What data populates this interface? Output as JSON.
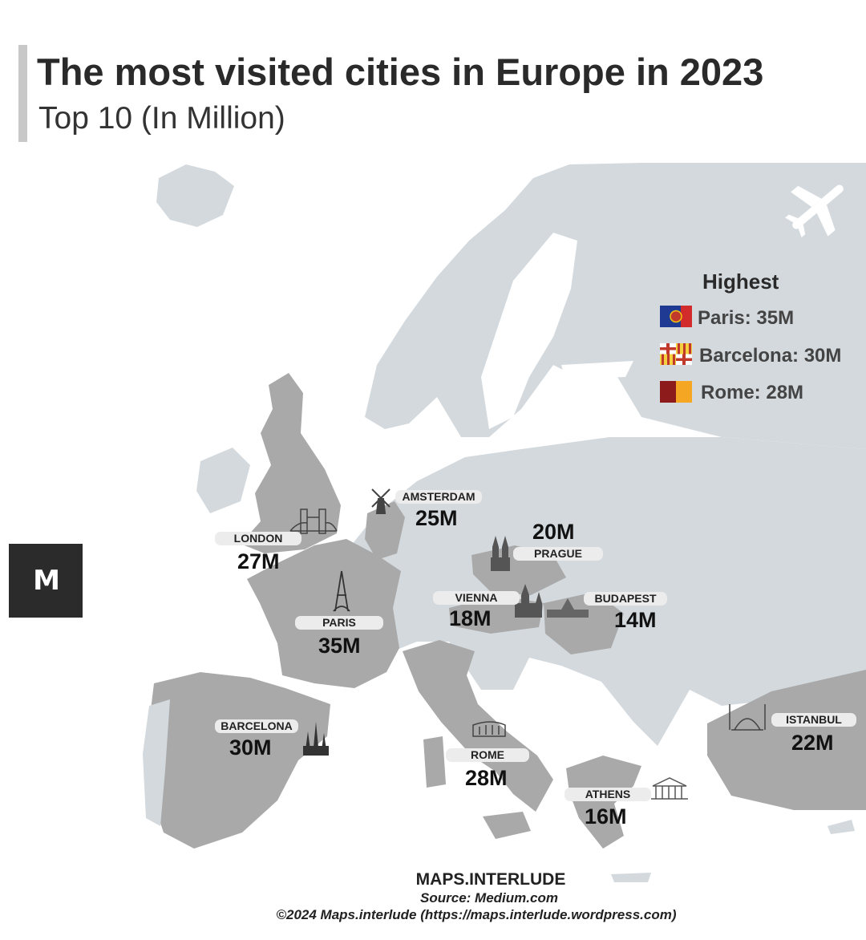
{
  "header": {
    "title": "The most visited cities in Europe in 2023",
    "subtitle": "Top 10 (In Million)"
  },
  "legend": {
    "title": "Highest",
    "items": [
      {
        "label": "Paris: 35M",
        "flag": "paris-flag-icon"
      },
      {
        "label": "Barcelona: 30M",
        "flag": "barcelona-flag-icon"
      },
      {
        "label": "Rome: 28M",
        "flag": "rome-flag-icon"
      }
    ]
  },
  "cities": [
    {
      "name": "LONDON",
      "value": "27M",
      "visitors": 27,
      "landmark": "tower-bridge-icon"
    },
    {
      "name": "AMSTERDAM",
      "value": "25M",
      "visitors": 25,
      "landmark": "windmill-icon"
    },
    {
      "name": "PRAGUE",
      "value": "20M",
      "visitors": 20,
      "landmark": "tyn-church-icon"
    },
    {
      "name": "PARIS",
      "value": "35M",
      "visitors": 35,
      "landmark": "eiffel-tower-icon"
    },
    {
      "name": "VIENNA",
      "value": "18M",
      "visitors": 18,
      "landmark": "stephansdom-icon"
    },
    {
      "name": "BUDAPEST",
      "value": "14M",
      "visitors": 14,
      "landmark": "parliament-icon"
    },
    {
      "name": "BARCELONA",
      "value": "30M",
      "visitors": 30,
      "landmark": "sagrada-familia-icon"
    },
    {
      "name": "ROME",
      "value": "28M",
      "visitors": 28,
      "landmark": "colosseum-icon"
    },
    {
      "name": "ISTANBUL",
      "value": "22M",
      "visitors": 22,
      "landmark": "hagia-sophia-icon"
    },
    {
      "name": "ATHENS",
      "value": "16M",
      "visitors": 16,
      "landmark": "parthenon-icon"
    }
  ],
  "logo": {
    "text": "M"
  },
  "footer": {
    "brand": "MAPS.INTERLUDE",
    "source": "Source: Medium.com",
    "copyright": "©2024 Maps.interlude (https://maps.interlude.wordpress.com)"
  },
  "colors": {
    "land": "#d3d9dd",
    "highlight": "#a9a9a9",
    "sea": "#ffffff",
    "border": "#ffffff"
  }
}
